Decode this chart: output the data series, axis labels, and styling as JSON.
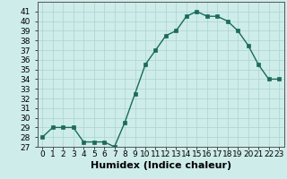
{
  "title": "",
  "xlabel": "Humidex (Indice chaleur)",
  "x_values": [
    0,
    1,
    2,
    3,
    4,
    5,
    6,
    7,
    8,
    9,
    10,
    11,
    12,
    13,
    14,
    15,
    16,
    17,
    18,
    19,
    20,
    21,
    22,
    23
  ],
  "y_values": [
    28,
    29,
    29,
    29,
    27.5,
    27.5,
    27.5,
    27,
    29.5,
    32.5,
    35.5,
    37,
    38.5,
    39,
    40.5,
    41,
    40.5,
    40.5,
    40,
    39,
    37.5,
    35.5,
    34,
    34
  ],
  "ylim": [
    27,
    42
  ],
  "yticks": [
    27,
    28,
    29,
    30,
    31,
    32,
    33,
    34,
    35,
    36,
    37,
    38,
    39,
    40,
    41
  ],
  "line_color": "#1a6b5a",
  "marker": "s",
  "marker_size": 2.5,
  "bg_color": "#ceecea",
  "grid_color": "#aad4d0",
  "xlabel_fontsize": 8,
  "tick_fontsize": 6.5
}
